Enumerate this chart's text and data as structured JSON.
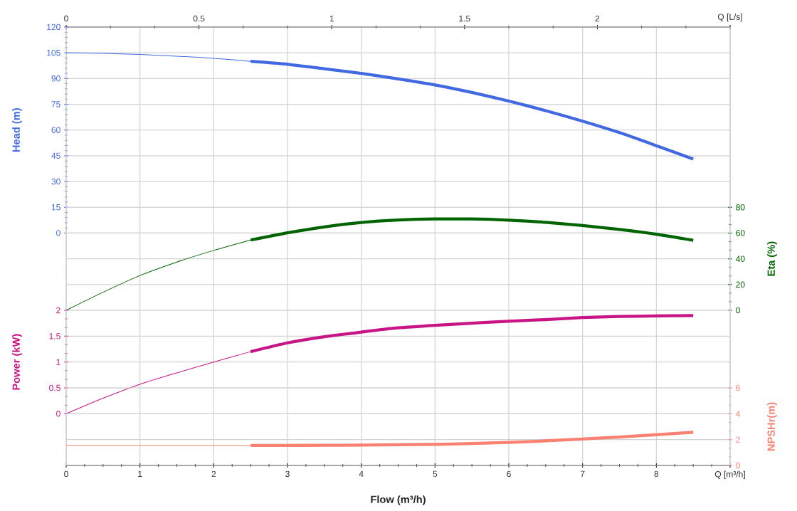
{
  "chart_data": [
    {
      "type": "line",
      "ylabel": "Head (m)",
      "y2label": "Eta (%)",
      "xlim": [
        0,
        9
      ],
      "xticks": [
        0,
        1,
        2,
        3,
        4,
        5,
        6,
        7,
        8,
        9
      ],
      "x2lim": [
        0,
        2.5
      ],
      "x2ticks": [
        0,
        0.5,
        1,
        1.5,
        2,
        {
          "value": 2.5,
          "label": "Q [L/s]"
        }
      ],
      "ylim": [
        -45,
        120
      ],
      "yticks": [
        0,
        15,
        30,
        45,
        60,
        75,
        90,
        105,
        120
      ],
      "y2lim": [
        0,
        220
      ],
      "y2ticks": [
        0,
        20,
        40,
        60,
        80
      ],
      "grid": true,
      "tick_labels": "y",
      "line_style": "solid",
      "series": [
        {
          "color": "#4169e1",
          "x": [
            0,
            0.5,
            1,
            1.5,
            2,
            2.5
          ],
          "values": [
            105,
            104.7,
            104,
            103,
            101.8,
            100
          ]
        },
        {
          "color": "#4169e1",
          "x": [
            2.5,
            3,
            3.5,
            4,
            4.5,
            5,
            5.5,
            6,
            6.5,
            7,
            7.5,
            8,
            8.5
          ],
          "values": [
            100,
            98.3,
            95.7,
            93,
            89.8,
            86.3,
            81.9,
            76.9,
            71.3,
            65.2,
            58.5,
            50.9,
            43.1
          ]
        },
        {
          "axis": "y2",
          "color": "#006400",
          "x": [
            0,
            0.5,
            1,
            1.5,
            2,
            2.5
          ],
          "values": [
            0,
            14,
            27,
            37.5,
            46.5,
            54.6
          ]
        },
        {
          "axis": "y2",
          "color": "#006400",
          "x": [
            2.5,
            3,
            3.5,
            4,
            4.5,
            5,
            5.5,
            6,
            6.5,
            7,
            7.5,
            8,
            8.5
          ],
          "values": [
            54.6,
            60.2,
            64.8,
            68.2,
            70.1,
            70.9,
            70.9,
            70,
            68.3,
            65.8,
            62.8,
            59.1,
            54.4
          ]
        }
      ]
    },
    {
      "type": "line",
      "xlabel": "Flow (m³/h)",
      "ylabel": "Power (kW)",
      "y2label": "NPSHr(m)",
      "xlim": [
        0,
        9
      ],
      "xticks": [
        0,
        1,
        2,
        3,
        4,
        5,
        6,
        7,
        8,
        {
          "value": 9,
          "label": "Q [m³/h]"
        }
      ],
      "ylim": [
        -1,
        2
      ],
      "yticks": [
        0,
        0.5,
        1,
        1.5,
        2
      ],
      "y2lim": [
        0,
        12
      ],
      "y2ticks": [
        0,
        2,
        4,
        6
      ],
      "grid": true,
      "line_style": "solid",
      "series": [
        {
          "color": "#c71585",
          "x": [
            0,
            0.5,
            1,
            1.5,
            2,
            2.5
          ],
          "values": [
            0,
            0.3,
            0.57,
            0.79,
            1,
            1.2
          ]
        },
        {
          "color": "#c71585",
          "x": [
            2.5,
            3,
            3.5,
            4,
            4.5,
            5,
            5.5,
            6,
            6.5,
            7,
            7.5,
            8,
            8.5
          ],
          "values": [
            1.2,
            1.37,
            1.49,
            1.58,
            1.66,
            1.71,
            1.75,
            1.79,
            1.82,
            1.86,
            1.88,
            1.89,
            1.9
          ]
        },
        {
          "axis": "y2",
          "color": "#fa8072",
          "x": [
            0,
            2.5
          ],
          "values": [
            1.55,
            1.55
          ]
        },
        {
          "axis": "y2",
          "color": "#fa8072",
          "x": [
            2.5,
            3,
            3.5,
            4,
            4.5,
            5,
            5.5,
            6,
            6.5,
            7,
            7.5,
            8,
            8.5
          ],
          "values": [
            1.55,
            1.55,
            1.56,
            1.57,
            1.6,
            1.63,
            1.7,
            1.78,
            1.9,
            2.05,
            2.2,
            2.38,
            2.57
          ]
        }
      ]
    }
  ]
}
